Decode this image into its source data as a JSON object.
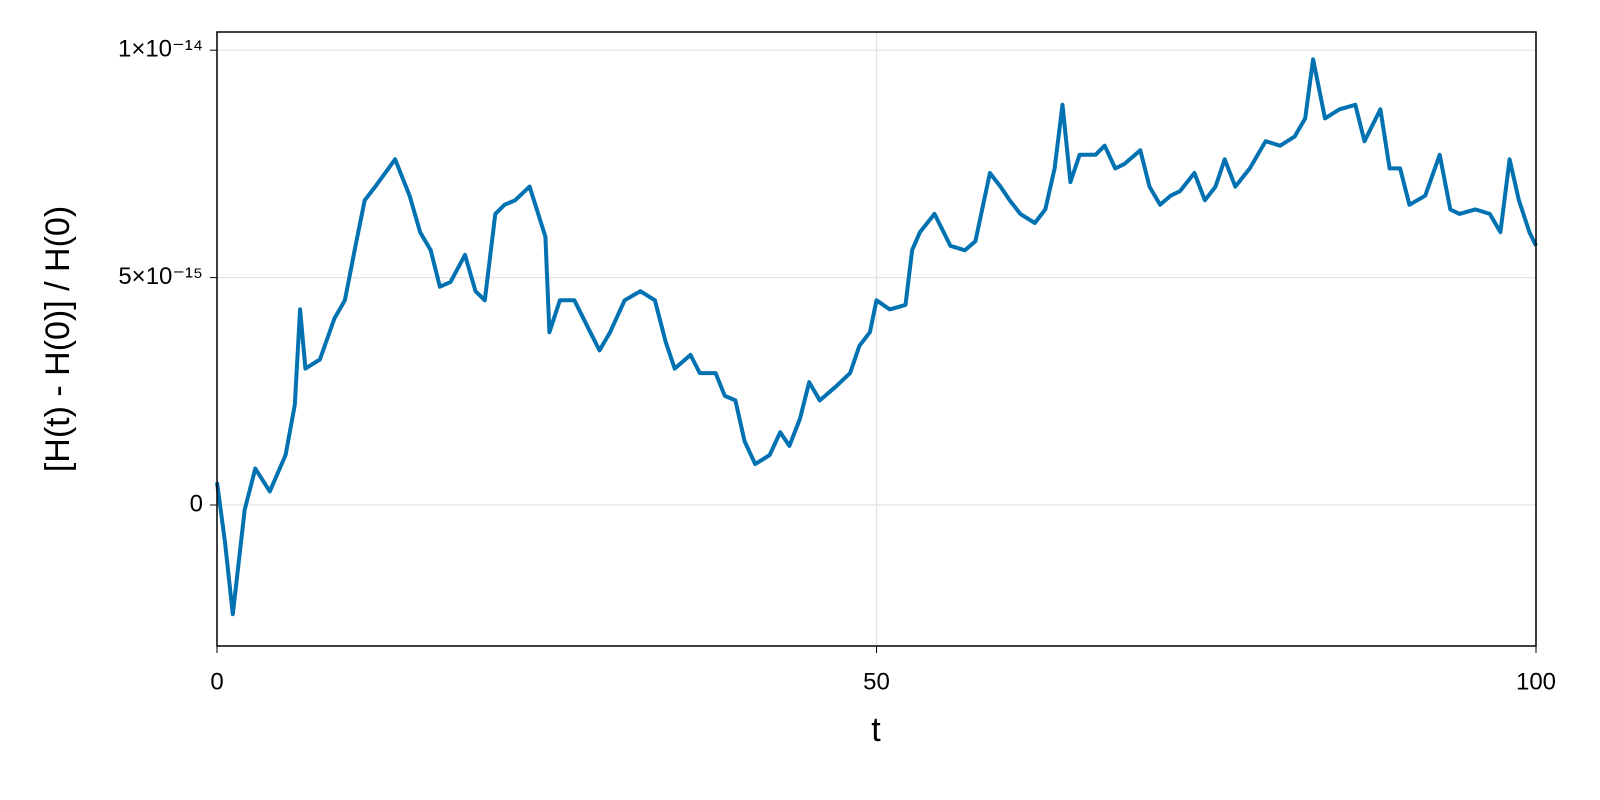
{
  "chart_data": {
    "type": "line",
    "xlabel": "t",
    "ylabel": "[H(t) - H(0)] / H(0)",
    "xlim": [
      0,
      100
    ],
    "xticks": [
      0,
      50,
      100
    ],
    "ylim": [
      -3.1e-15,
      1.04e-14
    ],
    "yticks": [
      0,
      {
        "value": 5e-15,
        "label": "5×10⁻¹⁵"
      },
      {
        "value": 1e-14,
        "label": "1×10⁻¹⁴"
      }
    ],
    "grid": true,
    "x": [
      0,
      0.6,
      1.2,
      2.1,
      2.9,
      4.0,
      5.2,
      5.9,
      6.3,
      6.7,
      7.8,
      8.9,
      9.7,
      10.5,
      11.2,
      12.0,
      13.5,
      14.6,
      15.4,
      16.2,
      16.9,
      17.7,
      18.8,
      19.6,
      20.3,
      21.1,
      21.8,
      22.6,
      23.7,
      24.9,
      25.2,
      26.0,
      27.1,
      28.3,
      29.0,
      29.8,
      30.9,
      32.1,
      33.2,
      34.0,
      34.7,
      35.9,
      36.6,
      37.8,
      38.5,
      39.3,
      40.0,
      40.8,
      41.9,
      42.7,
      43.4,
      44.2,
      44.9,
      45.7,
      46.9,
      48.0,
      48.7,
      49.5,
      50.0,
      51.0,
      52.2,
      52.7,
      53.3,
      54.4,
      55.6,
      56.7,
      57.5,
      58.6,
      59.4,
      60.1,
      60.9,
      62.0,
      62.8,
      63.5,
      64.1,
      64.7,
      65.4,
      66.6,
      67.3,
      68.1,
      68.8,
      70.0,
      70.7,
      71.5,
      72.3,
      73.0,
      74.1,
      74.9,
      75.7,
      76.4,
      77.2,
      78.3,
      79.5,
      80.6,
      81.7,
      82.5,
      83.1,
      84.0,
      85.1,
      86.3,
      87.0,
      88.2,
      88.9,
      89.7,
      90.4,
      91.6,
      92.7,
      93.5,
      94.2,
      95.4,
      96.5,
      97.3,
      98.0,
      98.7,
      99.5,
      100
    ],
    "series": [
      {
        "color": "#0072b2",
        "values": [
          5e-16,
          -8e-16,
          -2.4e-15,
          -1e-16,
          8e-16,
          3e-16,
          1.1e-15,
          2.2e-15,
          4.3e-15,
          3e-15,
          3.2e-15,
          4.1e-15,
          4.5e-15,
          5.7e-15,
          6.7e-15,
          7e-15,
          7.6e-15,
          6.8e-15,
          6e-15,
          5.6e-15,
          4.8e-15,
          4.9e-15,
          5.5e-15,
          4.7e-15,
          4.5e-15,
          6.4e-15,
          6.6e-15,
          6.7e-15,
          7e-15,
          5.9e-15,
          3.8e-15,
          4.5e-15,
          4.5e-15,
          3.8e-15,
          3.4e-15,
          3.8e-15,
          4.5e-15,
          4.7e-15,
          4.5e-15,
          3.6e-15,
          3e-15,
          3.3e-15,
          2.9e-15,
          2.9e-15,
          2.4e-15,
          2.3e-15,
          1.4e-15,
          9e-16,
          1.1e-15,
          1.6e-15,
          1.3e-15,
          1.9e-15,
          2.7e-15,
          2.3e-15,
          2.6e-15,
          2.9e-15,
          3.5e-15,
          3.8e-15,
          4.5e-15,
          4.3e-15,
          4.4e-15,
          5.6e-15,
          6e-15,
          6.4e-15,
          5.7e-15,
          5.6e-15,
          5.8e-15,
          7.3e-15,
          7e-15,
          6.7e-15,
          6.4e-15,
          6.2e-15,
          6.5e-15,
          7.4e-15,
          8.8e-15,
          7.1e-15,
          7.7e-15,
          7.7e-15,
          7.9e-15,
          7.4e-15,
          7.5e-15,
          7.8e-15,
          7e-15,
          6.6e-15,
          6.8e-15,
          6.9e-15,
          7.3e-15,
          6.7e-15,
          7e-15,
          7.6e-15,
          7e-15,
          7.4e-15,
          8e-15,
          7.9e-15,
          8.1e-15,
          8.5e-15,
          9.8e-15,
          8.5e-15,
          8.7e-15,
          8.8e-15,
          8e-15,
          8.7e-15,
          7.4e-15,
          7.4e-15,
          6.6e-15,
          6.8e-15,
          7.7e-15,
          6.5e-15,
          6.4e-15,
          6.5e-15,
          6.4e-15,
          6e-15,
          7.6e-15,
          6.7e-15,
          6e-15,
          5.7e-15
        ]
      }
    ]
  }
}
